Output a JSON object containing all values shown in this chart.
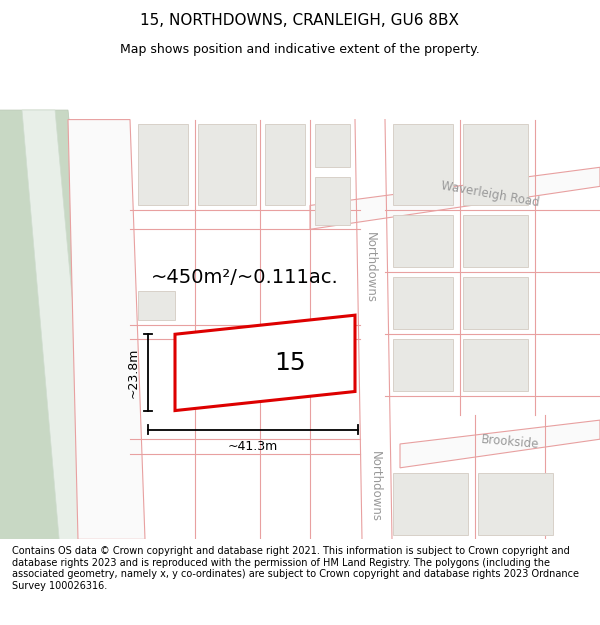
{
  "title": "15, NORTHDOWNS, CRANLEIGH, GU6 8BX",
  "subtitle": "Map shows position and indicative extent of the property.",
  "footer": "Contains OS data © Crown copyright and database right 2021. This information is subject to Crown copyright and database rights 2023 and is reproduced with the permission of HM Land Registry. The polygons (including the associated geometry, namely x, y co-ordinates) are subject to Crown copyright and database rights 2023 Ordnance Survey 100026316.",
  "map_bg": "#fafafa",
  "road_line_color": "#e8a0a0",
  "building_fill": "#e8e8e4",
  "building_outline": "#d8d0c8",
  "highlight_fill": "#ffffff",
  "highlight_outline": "#dd0000",
  "rail_fill_outer": "#c8d8c4",
  "rail_fill_inner": "#e8efe8",
  "rail_outline": "#b8c8b4",
  "street_label_color": "#999999",
  "dim_color": "#333333",
  "area_label": "~450m²/~0.111ac.",
  "number_label": "15",
  "dim_width": "~41.3m",
  "dim_height": "~23.8m",
  "title_fontsize": 11,
  "subtitle_fontsize": 9,
  "footer_fontsize": 7.0,
  "label_fontsize": 18,
  "area_fontsize": 14,
  "street_fontsize": 8.5
}
